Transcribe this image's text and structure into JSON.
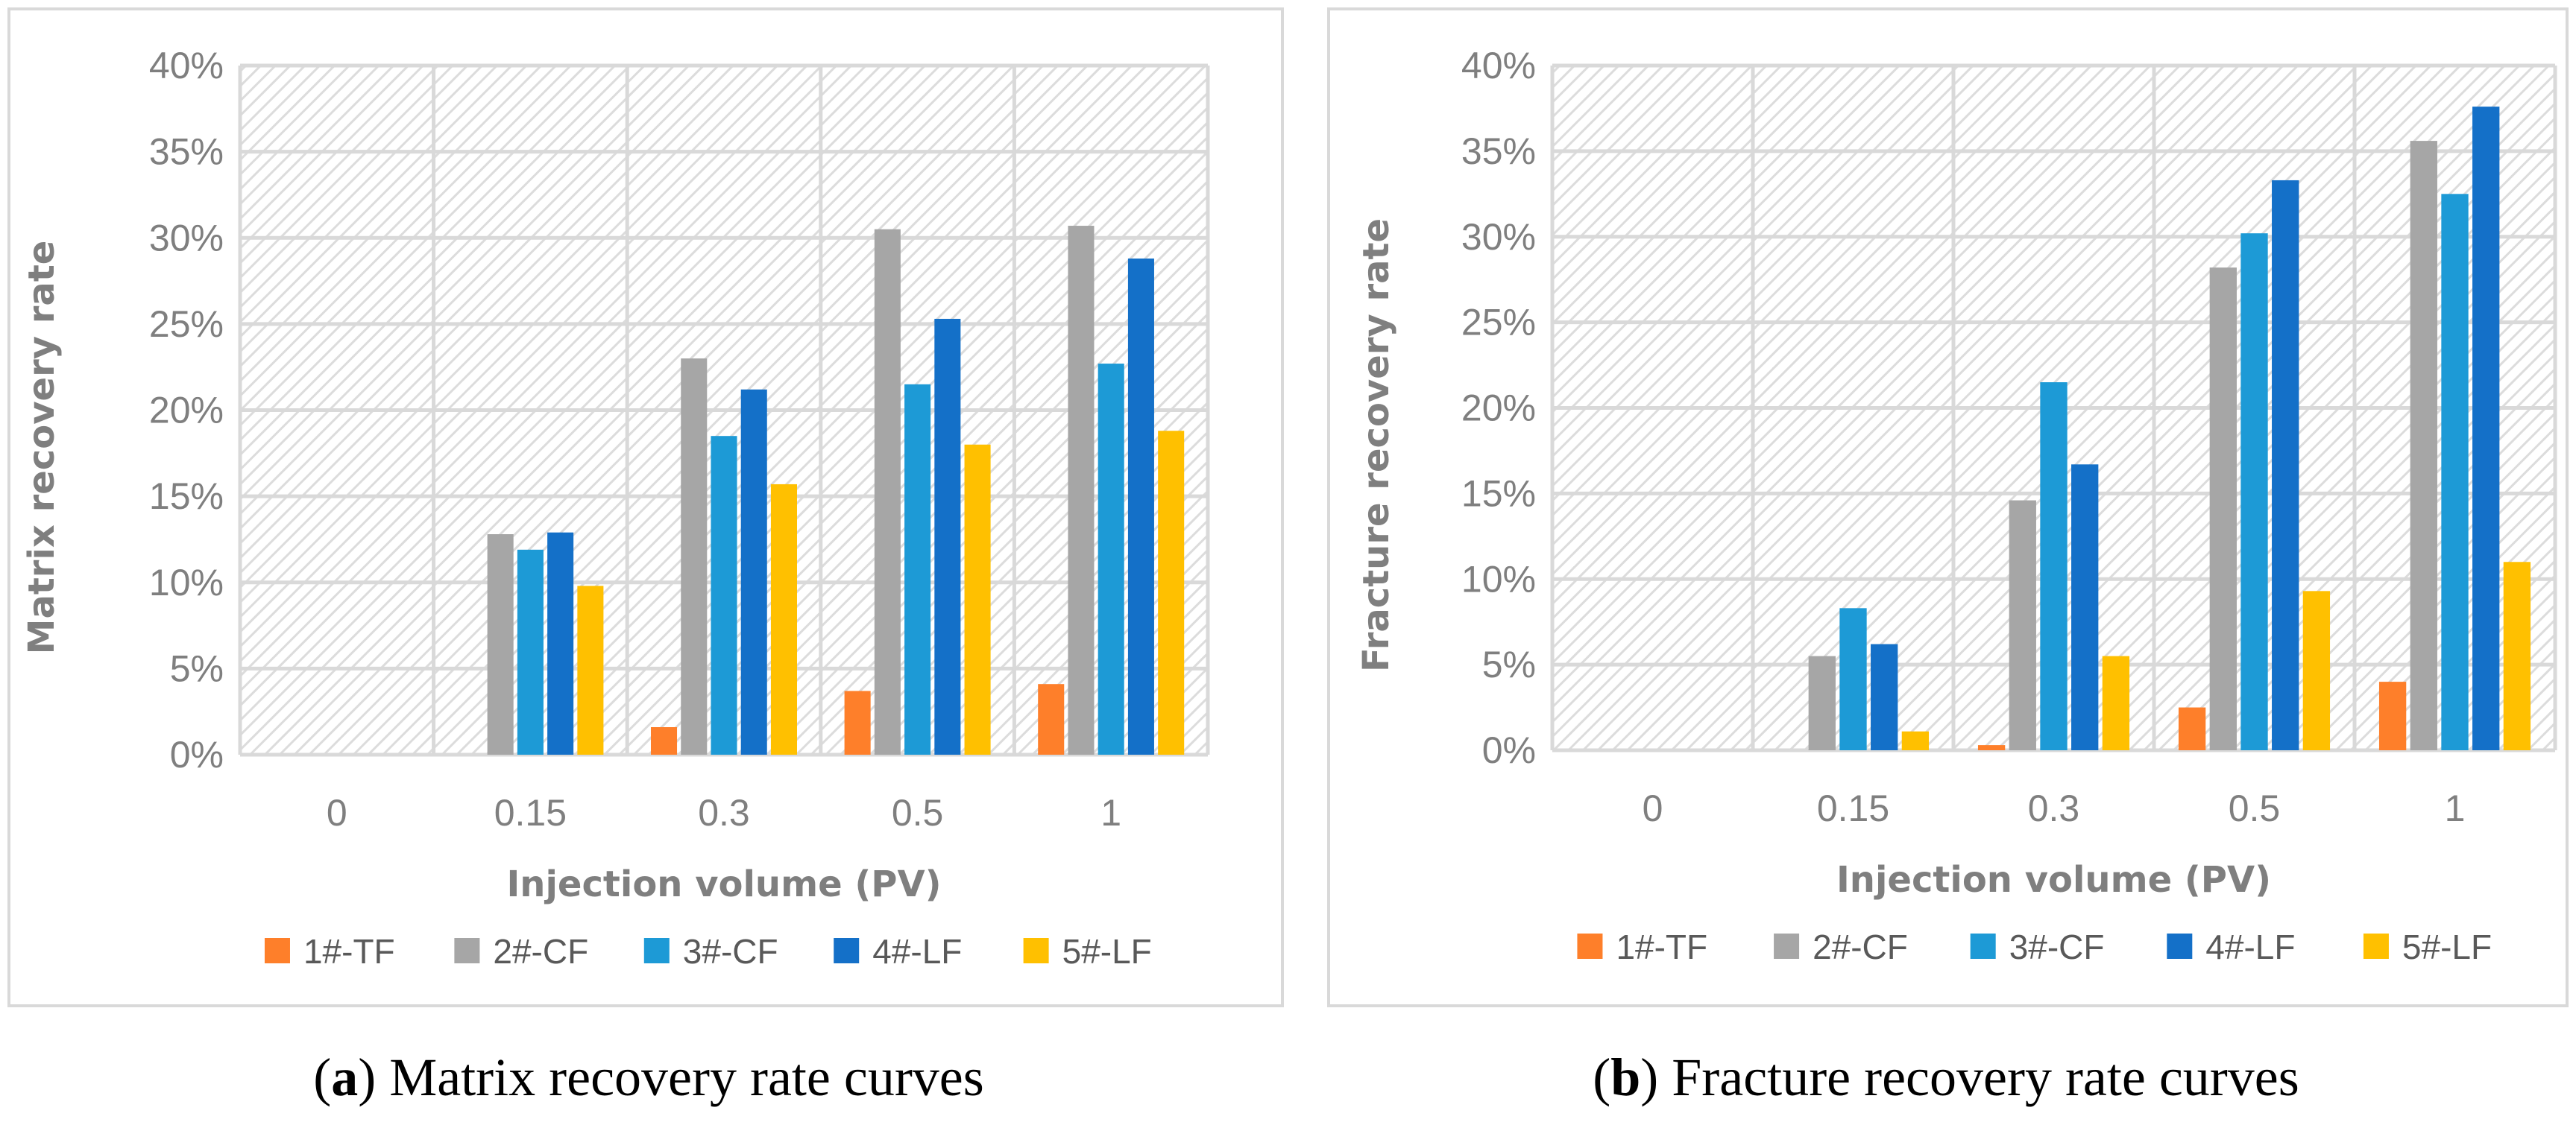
{
  "colors": {
    "1#-TF": "#fe7f2a",
    "2#-CF": "#a6a6a6",
    "3#-CF": "#1d9ad6",
    "4#-LF": "#1470c8",
    "5#-LF": "#ffc000",
    "grid": "#d9d9d9",
    "text": "#7f7f7f"
  },
  "chart_data": [
    {
      "type": "bar",
      "caption_letter": "a",
      "caption": " Matrix recovery rate curves",
      "xlabel": "Injection volume (PV)",
      "ylabel": "Matrix recovery rate",
      "categories": [
        "0",
        "0.15",
        "0.3",
        "0.5",
        "1"
      ],
      "ylim": [
        0,
        40
      ],
      "yticks": [
        "0%",
        "5%",
        "10%",
        "15%",
        "20%",
        "25%",
        "30%",
        "35%",
        "40%"
      ],
      "grid": true,
      "legend_position": "bottom",
      "series": [
        {
          "name": "1#-TF",
          "values": [
            0,
            0,
            1.6,
            3.7,
            4.1
          ]
        },
        {
          "name": "2#-CF",
          "values": [
            0,
            12.8,
            23.0,
            30.5,
            30.7
          ]
        },
        {
          "name": "3#-CF",
          "values": [
            0,
            11.9,
            18.5,
            21.5,
            22.7
          ]
        },
        {
          "name": "4#-LF",
          "values": [
            0,
            12.9,
            21.2,
            25.3,
            28.8
          ]
        },
        {
          "name": "5#-LF",
          "values": [
            0,
            9.8,
            15.7,
            18.0,
            18.8
          ]
        }
      ]
    },
    {
      "type": "bar",
      "caption_letter": "b",
      "caption": " Fracture recovery rate curves",
      "xlabel": "Injection volume (PV)",
      "ylabel": "Fracture recovery rate",
      "categories": [
        "0",
        "0.15",
        "0.3",
        "0.5",
        "1"
      ],
      "ylim": [
        0,
        40
      ],
      "yticks": [
        "0%",
        "5%",
        "10%",
        "15%",
        "20%",
        "25%",
        "30%",
        "35%",
        "40%"
      ],
      "grid": true,
      "legend_position": "bottom",
      "series": [
        {
          "name": "1#-TF",
          "values": [
            0,
            0,
            0.3,
            2.5,
            4.0
          ]
        },
        {
          "name": "2#-CF",
          "values": [
            0,
            5.5,
            14.6,
            28.2,
            35.6
          ]
        },
        {
          "name": "3#-CF",
          "values": [
            0,
            8.3,
            21.5,
            30.2,
            32.5
          ]
        },
        {
          "name": "4#-LF",
          "values": [
            0,
            6.2,
            16.7,
            33.3,
            37.6
          ]
        },
        {
          "name": "5#-LF",
          "values": [
            0,
            1.1,
            5.5,
            9.3,
            11.0
          ]
        }
      ]
    }
  ]
}
